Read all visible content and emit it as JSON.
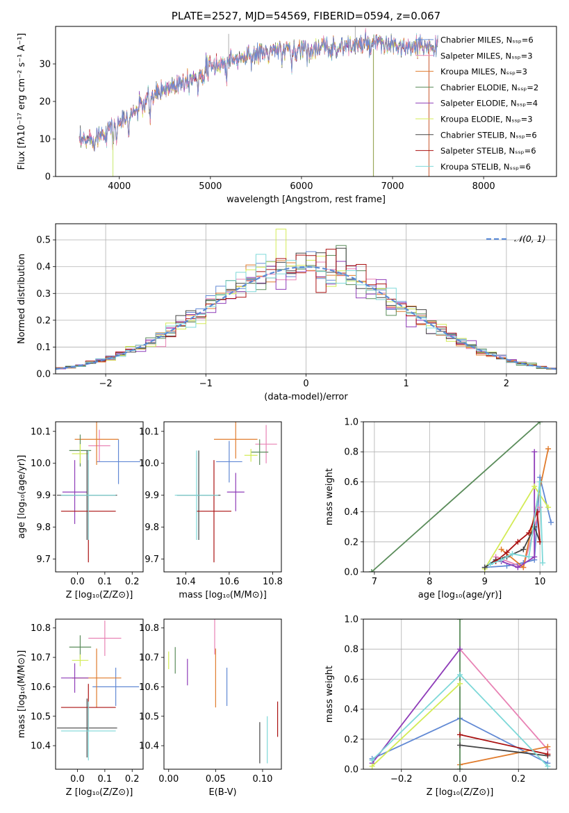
{
  "colors": {
    "Chabrier MILES": "#6189d4",
    "Salpeter MILES": "#e882b4",
    "Kroupa MILES": "#e07b2c",
    "Chabrier ELODIE": "#5a8c5a",
    "Salpeter ELODIE": "#8e3bb8",
    "Kroupa ELODIE": "#d3eb55",
    "Chabrier STELIB": "#444444",
    "Salpeter STELIB": "#aa1111",
    "Kroupa STELIB": "#7dd8d8"
  },
  "chart_data": [
    {
      "id": "spectrum",
      "type": "line",
      "title": "PLATE=2527, MJD=54569, FIBERID=0594, z=0.067",
      "xlabel": "wavelength [Angstrom, rest frame]",
      "ylabel": "Flux [fλ10⁻¹⁷ erg cm⁻² s⁻¹ A⁻¹]",
      "xlim": [
        3300,
        8800
      ],
      "ylim": [
        0,
        40
      ],
      "xticks": [
        4000,
        5000,
        6000,
        7000,
        8000
      ],
      "yticks": [
        0,
        10,
        20,
        30
      ],
      "anchors_x": [
        3560,
        3700,
        3850,
        3950,
        4050,
        4200,
        4400,
        4600,
        4800,
        5000,
        5200,
        5400,
        5600,
        5800,
        6000,
        6200,
        6400,
        6600,
        6800,
        7000,
        7200,
        7400,
        7500
      ],
      "anchors_y": [
        9,
        10,
        12,
        14,
        15,
        18,
        22,
        24.5,
        26.5,
        29,
        31,
        32,
        33,
        33.5,
        34,
        34,
        34.5,
        35,
        35,
        35,
        34,
        35,
        35
      ],
      "legend": [
        {
          "model": "Chabrier MILES",
          "label": "Chabrier MILES, Nₛₛₚ=6"
        },
        {
          "model": "Salpeter MILES",
          "label": "Salpeter MILES, Nₛₛₚ=3"
        },
        {
          "model": "Kroupa MILES",
          "label": "Kroupa MILES, Nₛₛₚ=3"
        },
        {
          "model": "Chabrier ELODIE",
          "label": "Chabrier ELODIE, Nₛₛₚ=2"
        },
        {
          "model": "Salpeter ELODIE",
          "label": "Salpeter ELODIE, Nₛₛₚ=4"
        },
        {
          "model": "Kroupa ELODIE",
          "label": "Kroupa ELODIE, Nₛₛₚ=3"
        },
        {
          "model": "Chabrier STELIB",
          "label": "Chabrier STELIB, Nₛₛₚ=6"
        },
        {
          "model": "Salpeter STELIB",
          "label": "Salpeter STELIB, Nₛₛₚ=6"
        },
        {
          "model": "Kroupa STELIB",
          "label": "Kroupa STELIB, Nₛₛₚ=6"
        }
      ],
      "legend_position": "upper-right"
    },
    {
      "id": "residuals",
      "type": "line",
      "xlabel": "(data-model)/error",
      "ylabel": "Normed distribution",
      "xlim": [
        -2.5,
        2.5
      ],
      "ylim": [
        0,
        0.56
      ],
      "xticks": [
        -2,
        -1,
        0,
        1,
        2
      ],
      "yticks": [
        0.0,
        0.1,
        0.2,
        0.3,
        0.4,
        0.5
      ],
      "bin_width": 0.1,
      "grid": true,
      "reference": {
        "label": "𝒩(0, 1)",
        "style": "dashed",
        "color": "#5b8ad6"
      },
      "legend_position": "upper-right"
    },
    {
      "id": "age-vs-Z",
      "type": "scatter",
      "xlabel": "Z [log₁₀(Z/Z⊙)]",
      "ylabel": "age  [log₁₀(age/yr)]",
      "xlim": [
        -0.08,
        0.24
      ],
      "ylim": [
        9.66,
        10.13
      ],
      "xticks": [
        0.0,
        0.1,
        0.2
      ],
      "yticks": [
        9.7,
        9.8,
        9.9,
        10.0,
        10.1
      ],
      "points": [
        {
          "model": "Chabrier MILES",
          "x": 0.15,
          "xerr": 0.08,
          "y": 10.005,
          "yerr": 0.07
        },
        {
          "model": "Salpeter MILES",
          "x": 0.08,
          "xerr": 0.04,
          "y": 10.055,
          "yerr": 0.05
        },
        {
          "model": "Kroupa MILES",
          "x": 0.07,
          "xerr": 0.08,
          "y": 10.075,
          "yerr": 0.08
        },
        {
          "model": "Chabrier ELODIE",
          "x": 0.01,
          "xerr": 0.04,
          "y": 10.04,
          "yerr": 0.05
        },
        {
          "model": "Salpeter ELODIE",
          "x": -0.01,
          "xerr": 0.045,
          "y": 9.91,
          "yerr": 0.1
        },
        {
          "model": "Kroupa ELODIE",
          "x": 0.01,
          "xerr": 0.03,
          "y": 10.03,
          "yerr": 0.03
        },
        {
          "model": "Chabrier STELIB",
          "x": 0.035,
          "xerr": 0.11,
          "y": 9.9,
          "yerr": 0.14
        },
        {
          "model": "Salpeter STELIB",
          "x": 0.04,
          "xerr": 0.1,
          "y": 9.85,
          "yerr": 0.16
        },
        {
          "model": "Kroupa STELIB",
          "x": 0.04,
          "xerr": 0.1,
          "y": 9.9,
          "yerr": 0.14
        }
      ]
    },
    {
      "id": "age-vs-mass",
      "type": "scatter",
      "xlabel": "mass [log₁₀(M/M⊙)]",
      "ylabel": "",
      "xlim": [
        10.3,
        10.84
      ],
      "ylim": [
        9.66,
        10.13
      ],
      "xticks": [
        10.4,
        10.6,
        10.8
      ],
      "yticks": [
        9.7,
        9.8,
        9.9,
        10.0,
        10.1
      ],
      "points": [
        {
          "model": "Chabrier MILES",
          "x": 10.6,
          "xerr": 0.06,
          "y": 10.005,
          "yerr": 0.065
        },
        {
          "model": "Salpeter MILES",
          "x": 10.77,
          "xerr": 0.05,
          "y": 10.06,
          "yerr": 0.06
        },
        {
          "model": "Kroupa MILES",
          "x": 10.63,
          "xerr": 0.1,
          "y": 10.075,
          "yerr": 0.06
        },
        {
          "model": "Chabrier ELODIE",
          "x": 10.74,
          "xerr": 0.04,
          "y": 10.035,
          "yerr": 0.04
        },
        {
          "model": "Salpeter ELODIE",
          "x": 10.63,
          "xerr": 0.04,
          "y": 9.91,
          "yerr": 0.06
        },
        {
          "model": "Kroupa ELODIE",
          "x": 10.7,
          "xerr": 0.03,
          "y": 10.025,
          "yerr": 0.02
        },
        {
          "model": "Chabrier STELIB",
          "x": 10.46,
          "xerr": 0.1,
          "y": 9.9,
          "yerr": 0.14
        },
        {
          "model": "Salpeter STELIB",
          "x": 10.53,
          "xerr": 0.08,
          "y": 9.85,
          "yerr": 0.16
        },
        {
          "model": "Kroupa STELIB",
          "x": 10.45,
          "xerr": 0.1,
          "y": 9.9,
          "yerr": 0.14
        }
      ]
    },
    {
      "id": "weight-vs-age",
      "type": "line",
      "xlabel": "age  [log₁₀(age/yr)]",
      "ylabel": "mass weight",
      "xlim": [
        6.8,
        10.3
      ],
      "ylim": [
        0,
        1.0
      ],
      "xticks": [
        7,
        8,
        9,
        10
      ],
      "yticks": [
        0.0,
        0.2,
        0.4,
        0.6,
        0.8,
        1.0
      ],
      "grid": true,
      "series": [
        {
          "model": "Chabrier MILES",
          "x": [
            9.0,
            9.4,
            9.7,
            9.9,
            10.0,
            10.2
          ],
          "y": [
            0.03,
            0.04,
            0.06,
            0.08,
            0.63,
            0.33
          ]
        },
        {
          "model": "Salpeter MILES",
          "x": [
            9.2,
            9.7,
            10.0
          ],
          "y": [
            0.1,
            0.03,
            0.43
          ]
        },
        {
          "model": "Kroupa MILES",
          "x": [
            9.3,
            9.7,
            10.15
          ],
          "y": [
            0.15,
            0.03,
            0.82
          ]
        },
        {
          "model": "Chabrier ELODIE",
          "x": [
            6.95,
            10.0
          ],
          "y": [
            0.0,
            1.0
          ]
        },
        {
          "model": "Salpeter ELODIE",
          "x": [
            9.3,
            9.6,
            9.9,
            9.9
          ],
          "y": [
            0.07,
            0.03,
            0.1,
            0.8
          ]
        },
        {
          "model": "Kroupa ELODIE",
          "x": [
            9.0,
            9.9,
            10.15
          ],
          "y": [
            0.02,
            0.57,
            0.43
          ]
        },
        {
          "model": "Chabrier STELIB",
          "x": [
            9.0,
            9.2,
            9.4,
            9.7,
            9.9,
            10.0
          ],
          "y": [
            0.03,
            0.08,
            0.1,
            0.15,
            0.3,
            0.2
          ]
        },
        {
          "model": "Salpeter STELIB",
          "x": [
            9.2,
            9.4,
            9.6,
            9.8,
            9.95,
            10.0
          ],
          "y": [
            0.07,
            0.13,
            0.2,
            0.26,
            0.4,
            0.2
          ]
        },
        {
          "model": "Kroupa STELIB",
          "x": [
            9.1,
            9.3,
            9.5,
            9.8,
            10.0,
            10.05
          ],
          "y": [
            0.05,
            0.08,
            0.12,
            0.1,
            0.6,
            0.06
          ]
        }
      ]
    },
    {
      "id": "mass-vs-Z",
      "type": "scatter",
      "xlabel": "Z [log₁₀(Z/Z⊙)]",
      "ylabel": "mass [log₁₀(M/M⊙)]",
      "xlim": [
        -0.08,
        0.24
      ],
      "ylim": [
        10.32,
        10.83
      ],
      "xticks": [
        0.0,
        0.1,
        0.2
      ],
      "yticks": [
        10.4,
        10.5,
        10.6,
        10.7,
        10.8
      ],
      "points": [
        {
          "model": "Chabrier MILES",
          "x": 0.14,
          "xerr": 0.085,
          "y": 10.6,
          "yerr": 0.065
        },
        {
          "model": "Salpeter MILES",
          "x": 0.1,
          "xerr": 0.06,
          "y": 10.765,
          "yerr": 0.06
        },
        {
          "model": "Kroupa MILES",
          "x": 0.07,
          "xerr": 0.09,
          "y": 10.63,
          "yerr": 0.1
        },
        {
          "model": "Chabrier ELODIE",
          "x": 0.01,
          "xerr": 0.04,
          "y": 10.735,
          "yerr": 0.04
        },
        {
          "model": "Salpeter ELODIE",
          "x": -0.01,
          "xerr": 0.05,
          "y": 10.63,
          "yerr": 0.05
        },
        {
          "model": "Kroupa ELODIE",
          "x": 0.01,
          "xerr": 0.03,
          "y": 10.69,
          "yerr": 0.02
        },
        {
          "model": "Chabrier STELIB",
          "x": 0.035,
          "xerr": 0.11,
          "y": 10.46,
          "yerr": 0.1
        },
        {
          "model": "Salpeter STELIB",
          "x": 0.04,
          "xerr": 0.1,
          "y": 10.53,
          "yerr": 0.08
        },
        {
          "model": "Kroupa STELIB",
          "x": 0.04,
          "xerr": 0.1,
          "y": 10.45,
          "yerr": 0.1
        }
      ]
    },
    {
      "id": "mass-vs-EBV",
      "type": "scatter",
      "xlabel": "E(B-V)",
      "ylabel": "",
      "xlim": [
        -0.005,
        0.12
      ],
      "ylim": [
        10.32,
        10.83
      ],
      "xticks": [
        0.0,
        0.05,
        0.1
      ],
      "yticks": [
        10.4,
        10.5,
        10.6,
        10.7,
        10.8
      ],
      "points": [
        {
          "model": "Chabrier MILES",
          "x": 0.062,
          "y": 10.6,
          "yerr": 0.065
        },
        {
          "model": "Salpeter MILES",
          "x": 0.049,
          "y": 10.77,
          "yerr": 0.06
        },
        {
          "model": "Kroupa MILES",
          "x": 0.05,
          "y": 10.63,
          "yerr": 0.1
        },
        {
          "model": "Chabrier ELODIE",
          "x": 0.007,
          "y": 10.69,
          "yerr": 0.045
        },
        {
          "model": "Salpeter ELODIE",
          "x": 0.02,
          "y": 10.65,
          "yerr": 0.045
        },
        {
          "model": "Kroupa ELODIE",
          "x": 0.0,
          "y": 10.69,
          "yerr": 0.03
        },
        {
          "model": "Chabrier STELIB",
          "x": 0.097,
          "y": 10.41,
          "yerr": 0.07
        },
        {
          "model": "Salpeter STELIB",
          "x": 0.116,
          "y": 10.49,
          "yerr": 0.06
        },
        {
          "model": "Kroupa STELIB",
          "x": 0.105,
          "y": 10.42,
          "yerr": 0.08
        }
      ]
    },
    {
      "id": "weight-vs-Z",
      "type": "line",
      "xlabel": "Z [log₁₀(Z/Z⊙)]",
      "ylabel": "mass weight",
      "xlim": [
        -0.33,
        0.33
      ],
      "ylim": [
        0,
        1.0
      ],
      "xticks": [
        -0.2,
        0.0,
        0.2
      ],
      "yticks": [
        0.0,
        0.2,
        0.4,
        0.6,
        0.8,
        1.0
      ],
      "grid": true,
      "series": [
        {
          "model": "Chabrier MILES",
          "x": [
            -0.3,
            0.0,
            0.3
          ],
          "y": [
            0.07,
            0.34,
            0.04
          ]
        },
        {
          "model": "Salpeter MILES",
          "x": [
            0.0,
            0.3
          ],
          "y": [
            0.8,
            0.13
          ]
        },
        {
          "model": "Kroupa MILES",
          "x": [
            0.0,
            0.3
          ],
          "y": [
            0.03,
            0.15
          ]
        },
        {
          "model": "Chabrier ELODIE",
          "x": [
            0.0,
            0.0
          ],
          "y": [
            0.0,
            1.0
          ]
        },
        {
          "model": "Salpeter ELODIE",
          "x": [
            -0.3,
            0.0
          ],
          "y": [
            0.04,
            0.8
          ]
        },
        {
          "model": "Kroupa ELODIE",
          "x": [
            -0.3,
            0.0
          ],
          "y": [
            0.02,
            0.57
          ]
        },
        {
          "model": "Chabrier STELIB",
          "x": [
            0.0,
            0.3
          ],
          "y": [
            0.16,
            0.09
          ]
        },
        {
          "model": "Salpeter STELIB",
          "x": [
            0.0,
            0.3
          ],
          "y": [
            0.23,
            0.1
          ]
        },
        {
          "model": "Kroupa STELIB",
          "x": [
            -0.3,
            0.0,
            0.3
          ],
          "y": [
            0.06,
            0.63,
            0.02
          ]
        }
      ]
    }
  ]
}
